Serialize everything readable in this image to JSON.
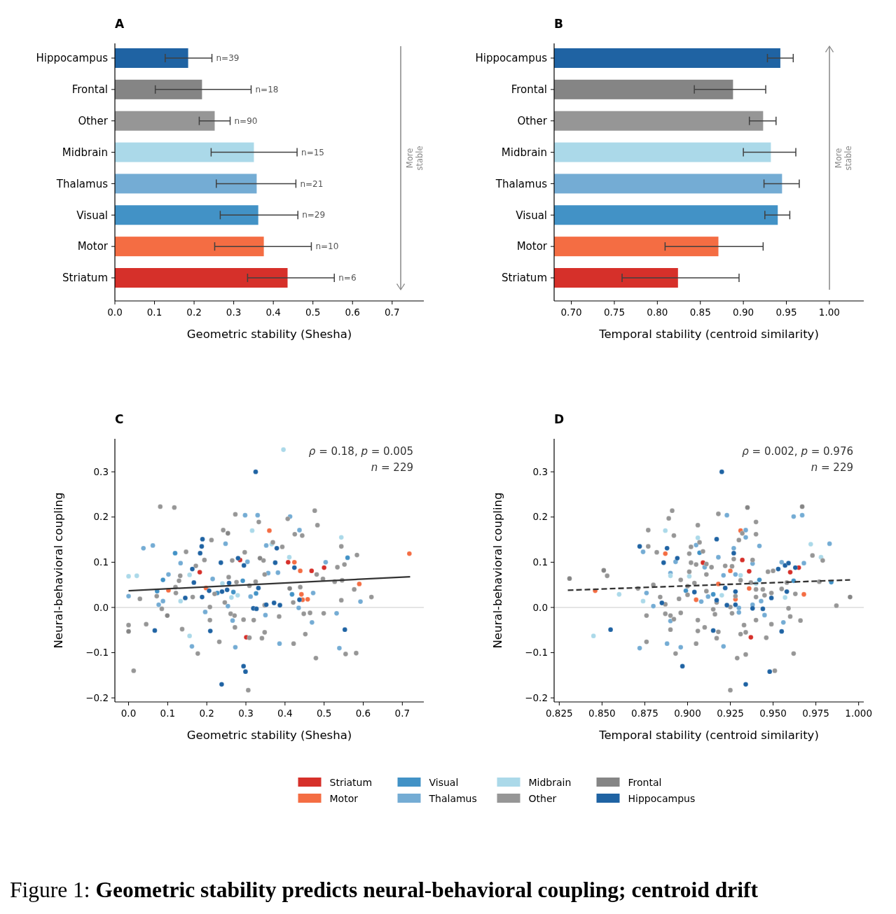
{
  "chart_data": [
    {
      "type": "bar",
      "orientation": "horizontal",
      "title": "A",
      "xlabel": "Geometric stability (Shesha)",
      "categories": [
        "Hippocampus",
        "Frontal",
        "Other",
        "Midbrain",
        "Thalamus",
        "Visual",
        "Motor",
        "Striatum"
      ],
      "values": [
        0.185,
        0.22,
        0.252,
        0.351,
        0.358,
        0.362,
        0.376,
        0.436
      ],
      "colors": [
        "#1f63a3",
        "#858585",
        "#969696",
        "#abd9e9",
        "#74acd4",
        "#4292c6",
        "#f46d43",
        "#d6302a"
      ],
      "errors": [
        [
          0.127,
          0.245
        ],
        [
          0.102,
          0.344
        ],
        [
          0.213,
          0.291
        ],
        [
          0.243,
          0.46
        ],
        [
          0.256,
          0.457
        ],
        [
          0.266,
          0.462
        ],
        [
          0.252,
          0.496
        ],
        [
          0.335,
          0.554
        ]
      ],
      "xlim": [
        0,
        0.78
      ],
      "annotations": [
        "More stable",
        {
          "text": "n=39",
          "x": 0.245,
          "y": "Hippocampus"
        },
        {
          "text": "n=18",
          "x": 0.344,
          "y": "Frontal"
        },
        {
          "text": "n=90",
          "x": 0.291,
          "y": "Other"
        },
        {
          "text": "n=15",
          "x": 0.46,
          "y": "Midbrain"
        },
        {
          "text": "n=21",
          "x": 0.457,
          "y": "Thalamus"
        },
        {
          "text": "n=29",
          "x": 0.462,
          "y": "Visual"
        },
        {
          "text": "n=10",
          "x": 0.496,
          "y": "Motor"
        },
        {
          "text": "n=6",
          "x": 0.554,
          "y": "Striatum"
        }
      ],
      "xticks": [
        {
          "value": 0,
          "label": "0.0"
        },
        {
          "value": 0.1,
          "label": "0.1"
        },
        {
          "value": 0.2,
          "label": "0.2"
        },
        {
          "value": 0.3,
          "label": "0.3"
        },
        {
          "value": 0.4,
          "label": "0.4"
        },
        {
          "value": 0.5,
          "label": "0.5"
        },
        {
          "value": 0.6,
          "label": "0.6"
        },
        {
          "value": 0.7,
          "label": "0.7"
        }
      ]
    },
    {
      "type": "bar",
      "orientation": "horizontal",
      "title": "B",
      "xlabel": "Temporal stability (centroid similarity)",
      "categories": [
        "Hippocampus",
        "Frontal",
        "Other",
        "Midbrain",
        "Thalamus",
        "Visual",
        "Motor",
        "Striatum"
      ],
      "values": [
        0.943,
        0.888,
        0.923,
        0.932,
        0.945,
        0.94,
        0.871,
        0.824
      ],
      "colors": [
        "#1f63a3",
        "#858585",
        "#969696",
        "#abd9e9",
        "#74acd4",
        "#4292c6",
        "#f46d43",
        "#d6302a"
      ],
      "errors": [
        [
          0.928,
          0.958
        ],
        [
          0.843,
          0.926
        ],
        [
          0.907,
          0.938
        ],
        [
          0.9,
          0.961
        ],
        [
          0.924,
          0.965
        ],
        [
          0.925,
          0.954
        ],
        [
          0.809,
          0.923
        ],
        [
          0.759,
          0.895
        ]
      ],
      "xlim": [
        0.68,
        1.04
      ],
      "xticks": [
        {
          "value": 0.7,
          "label": "0.70"
        },
        {
          "value": 0.75,
          "label": "0.75"
        },
        {
          "value": 0.8,
          "label": "0.80"
        },
        {
          "value": 0.85,
          "label": "0.85"
        },
        {
          "value": 0.9,
          "label": "0.90"
        },
        {
          "value": 0.95,
          "label": "0.95"
        },
        {
          "value": 1,
          "label": "1.00"
        }
      ],
      "annotations": [
        "More stable"
      ]
    },
    {
      "type": "scatter",
      "title": "C",
      "xlabel": "Geometric stability (Shesha)",
      "ylabel": "Neural-behavioral coupling",
      "legend": "bottom",
      "xlim": [
        -0.035,
        0.755
      ],
      "ylim": [
        -0.209,
        0.373
      ],
      "xticks": [
        {
          "value": 0,
          "label": "0.0"
        },
        {
          "value": 0.1,
          "label": "0.1"
        },
        {
          "value": 0.2,
          "label": "0.2"
        },
        {
          "value": 0.3,
          "label": "0.3"
        },
        {
          "value": 0.4,
          "label": "0.4"
        },
        {
          "value": 0.5,
          "label": "0.5"
        },
        {
          "value": 0.6,
          "label": "0.6"
        },
        {
          "value": 0.7,
          "label": "0.7"
        }
      ],
      "yticks": [
        {
          "value": -0.2,
          "label": "−0.2"
        },
        {
          "value": -0.1,
          "label": "−0.1"
        },
        {
          "value": 0,
          "label": "0.0"
        },
        {
          "value": 0.1,
          "label": "0.1"
        },
        {
          "value": 0.2,
          "label": "0.2"
        },
        {
          "value": 0.3,
          "label": "0.3"
        }
      ],
      "ref_lines": [
        {
          "axis": "y",
          "value": 0,
          "color": "#cccccc"
        }
      ],
      "annotations": [
        "ρ = 0.18, p = 0.005",
        "n = 229"
      ],
      "series": [
        {
          "name": "Striatum",
          "color": "#d6302a",
          "x": [
            0.285,
            0.182,
            0.408,
            0.468,
            0.5,
            0.301
          ],
          "values": [
            0.105,
            0.078,
            0.1,
            0.081,
            0.088,
            -0.066
          ]
        },
        {
          "name": "Motor",
          "color": "#f46d43",
          "x": [
            0.36,
            0.102,
            0.424,
            0.439,
            0.442,
            0.458,
            0.445,
            0.59,
            0.718,
            0.198
          ],
          "values": [
            0.17,
            0.038,
            0.1,
            0.081,
            0.029,
            0.018,
            0.017,
            0.052,
            0.119,
            0.043
          ]
        },
        {
          "name": "Visual",
          "color": "#4292c6",
          "x": [
            0.119,
            0.088,
            0.292,
            0.326,
            0.418,
            0.073,
            0.56,
            0.227,
            0.268
          ],
          "values": [
            0.12,
            0.061,
            0.059,
            0.031,
            0.029,
            0.036,
            0.11,
            0.032,
            0.034
          ]
        },
        {
          "name": "Thalamus",
          "color": "#74acd4",
          "x": [
            0.038,
            0.062,
            0,
            0.133,
            0.102,
            0.088,
            0.077,
            0.196,
            0.162,
            0.248,
            0.298,
            0.33,
            0.352,
            0.382,
            0.357,
            0.273,
            0.266,
            0.254,
            0.35,
            0.386,
            0.413,
            0.437,
            0.504,
            0.472,
            0.469,
            0.532,
            0.539,
            0.593,
            0.312,
            0.435,
            0.215,
            0.304
          ],
          "values": [
            0.131,
            0.137,
            0.025,
            0.098,
            0.073,
            0.014,
            0.006,
            -0.01,
            -0.086,
            0.141,
            0.204,
            0.204,
            0.137,
            0.077,
            0.076,
            -0.088,
            -0.029,
            0.003,
            -0.017,
            -0.08,
            0.201,
            0.171,
            0.1,
            0.032,
            -0.033,
            -0.013,
            -0.09,
            0.013,
            0.024,
            -0.001,
            0.063,
            0.101
          ]
        },
        {
          "name": "Midbrain",
          "color": "#abd9e9",
          "x": [
            0.396,
            0,
            0.021,
            0.316,
            0.156,
            0.133,
            0.156,
            0.263,
            0.279,
            0.411,
            0.544,
            0.366,
            0.24
          ],
          "values": [
            0.349,
            0.069,
            0.07,
            0.17,
            0.072,
            0.014,
            -0.063,
            0.022,
            0.027,
            0.111,
            0.155,
            0.14,
            0.053
          ]
        },
        {
          "name": "Other",
          "color": "#969696",
          "x": [
            0.081,
            0.117,
            0.273,
            0.476,
            0.483,
            0.333,
            0.407,
            0.242,
            0.212,
            0.147,
            0.544,
            0.584,
            0.552,
            0.534,
            0.425,
            0.444,
            0.393,
            0.369,
            0.297,
            0.345,
            0.265,
            0.194,
            0.172,
            0.132,
            0.129,
            0.12,
            0.072,
            0.029,
            0.256,
            0.276,
            0.325,
            0.348,
            0.309,
            0.439,
            0.481,
            0.497,
            0.527,
            0.546,
            0.577,
            0.621,
            0.544,
            0.421,
            0.348,
            0.246,
            0.22,
            0.164,
            0.121,
            0.208,
            0.085,
            0.045,
            0,
            0.137,
            0.208,
            0.261,
            0.271,
            0.294,
            0.32,
            0.385,
            0.448,
            0.464,
            0.499,
            0.348,
            0.341,
            0.309,
            0.272,
            0.232,
            0.177,
            0.422,
            0.452,
            0.479,
            0.555,
            0.582,
            0.013,
            0.306
          ],
          "values": [
            0.223,
            0.221,
            0.206,
            0.214,
            0.182,
            0.189,
            0.196,
            0.171,
            0.149,
            0.123,
            0.135,
            0.116,
            0.095,
            0.089,
            0.162,
            0.159,
            0.134,
            0.144,
            0.122,
            0.104,
            0.104,
            0.105,
            0.092,
            0.07,
            0.059,
            0.045,
            0.025,
            0.019,
            0.067,
            0.056,
            0.057,
            0.073,
            0.048,
            0.045,
            0.073,
            0.063,
            0.057,
            0.06,
            0.04,
            0.023,
            0.016,
            0.011,
            0.005,
            0.011,
            0.03,
            0.023,
            0.032,
            0.001,
            -0.003,
            -0.037,
            -0.039,
            -0.048,
            -0.028,
            -0.014,
            -0.018,
            -0.027,
            -0.028,
            -0.02,
            -0.014,
            -0.012,
            -0.013,
            -0.055,
            -0.068,
            -0.067,
            -0.044,
            -0.076,
            -0.102,
            -0.08,
            -0.059,
            -0.112,
            -0.103,
            -0.101,
            -0.14,
            -0.183
          ]
        },
        {
          "name": "Frontal",
          "color": "#858585",
          "x": [
            0,
            0.099,
            0.336,
            0.412,
            0.254
          ],
          "values": [
            -0.053,
            -0.018,
            0.109,
            0.042,
            0.164
          ]
        },
        {
          "name": "Hippocampus",
          "color": "#1f63a3",
          "x": [
            0.325,
            0.238,
            0.294,
            0.299,
            0.067,
            0.209,
            0.553,
            0.189,
            0.187,
            0.183,
            0.163,
            0.167,
            0.145,
            0.188,
            0.206,
            0.236,
            0.28,
            0.295,
            0.257,
            0.252,
            0.332,
            0.319,
            0.327,
            0.352,
            0.372,
            0.387,
            0.379,
            0.375,
            0.424,
            0.437,
            0.239
          ],
          "values": [
            0.3,
            -0.17,
            -0.13,
            -0.142,
            -0.051,
            -0.052,
            -0.049,
            0.151,
            0.135,
            0.12,
            0.085,
            0.055,
            0.021,
            0.023,
            0.037,
            0.099,
            0.109,
            0.093,
            0.054,
            0.039,
            0.043,
            -0.002,
            -0.003,
            0.006,
            0.01,
            0.005,
            0.131,
            0.099,
            0.088,
            0.017,
            0.035
          ]
        },
        {
          "type": "line",
          "color": "#333333",
          "x": [
            0,
            0.72
          ],
          "values": [
            0.037,
            0.068
          ]
        }
      ]
    },
    {
      "type": "scatter",
      "title": "D",
      "xlabel": "Temporal stability (centroid similarity)",
      "ylabel": "Neural-behavioral coupling",
      "legend": "bottom",
      "xlim": [
        0.822,
        1.003
      ],
      "ylim": [
        -0.209,
        0.373
      ],
      "xticks": [
        {
          "value": 0.825,
          "label": "0.825"
        },
        {
          "value": 0.85,
          "label": "0.850"
        },
        {
          "value": 0.875,
          "label": "0.875"
        },
        {
          "value": 0.9,
          "label": "0.900"
        },
        {
          "value": 0.925,
          "label": "0.925"
        },
        {
          "value": 0.95,
          "label": "0.950"
        },
        {
          "value": 0.975,
          "label": "0.975"
        },
        {
          "value": 1,
          "label": "1.000"
        }
      ],
      "yticks": [
        {
          "value": -0.2,
          "label": "−0.2"
        },
        {
          "value": -0.1,
          "label": "−0.1"
        },
        {
          "value": 0,
          "label": "0.0"
        },
        {
          "value": 0.1,
          "label": "0.1"
        },
        {
          "value": 0.2,
          "label": "0.2"
        },
        {
          "value": 0.3,
          "label": "0.3"
        }
      ],
      "ref_lines": [
        {
          "axis": "y",
          "value": 0,
          "color": "#cccccc"
        }
      ],
      "annotations": [
        "ρ = 0.002, p = 0.976",
        "n = 229"
      ],
      "series": [
        {
          "name": "Striatum",
          "color": "#d6302a",
          "x": [
            0.909,
            0.932,
            0.936,
            0.96,
            0.965,
            0.937
          ],
          "values": [
            0.099,
            0.105,
            0.08,
            0.078,
            0.088,
            -0.066
          ]
        },
        {
          "name": "Motor",
          "color": "#f46d43",
          "x": [
            0.846,
            0.887,
            0.931,
            0.925,
            0.918,
            0.905,
            0.928,
            0.936,
            0.968
          ],
          "values": [
            0.037,
            0.119,
            0.17,
            0.081,
            0.052,
            0.017,
            0.018,
            0.042,
            0.029
          ]
        },
        {
          "name": "Visual",
          "color": "#4292c6",
          "x": [
            0.899,
            0.907,
            0.942,
            0.962,
            0.984,
            0.915
          ],
          "values": [
            0.037,
            0.121,
            0.061,
            0.059,
            0.056,
            0.029
          ]
        },
        {
          "name": "Thalamus",
          "color": "#74acd4",
          "x": [
            0.874,
            0.872,
            0.876,
            0.88,
            0.888,
            0.89,
            0.89,
            0.893,
            0.896,
            0.905,
            0.91,
            0.912,
            0.908,
            0.918,
            0.921,
            0.923,
            0.927,
            0.928,
            0.921,
            0.934,
            0.934,
            0.938,
            0.942,
            0.943,
            0.945,
            0.93,
            0.93,
            0.938,
            0.956,
            0.955,
            0.962,
            0.967,
            0.968,
            0.983
          ],
          "values": [
            0.123,
            -0.09,
            0.032,
            0.003,
            -0.08,
            -0.03,
            0.076,
            0.101,
            -0.088,
            0.138,
            0.089,
            0.024,
            0.013,
            0.111,
            0.071,
            0.204,
            0.131,
            0.073,
            -0.086,
            0.171,
            0.155,
            0.097,
            0.136,
            0.014,
            -0.017,
            -0.011,
            -0.001,
            0.006,
            -0.033,
            0.1,
            0.201,
            0.204,
            0.098,
            0.141
          ]
        },
        {
          "name": "Midbrain",
          "color": "#abd9e9",
          "x": [
            0.845,
            0.86,
            0.874,
            0.887,
            0.906,
            0.901,
            0.89,
            0.92,
            0.931,
            0.957,
            0.972,
            0.978,
            0.94
          ],
          "values": [
            -0.063,
            0.029,
            0.014,
            0.17,
            0.154,
            0.069,
            0.07,
            0.027,
            0.071,
            0.022,
            0.14,
            0.111,
            0.053
          ]
        },
        {
          "name": "Other",
          "color": "#969696",
          "x": [
            0.853,
            0.877,
            0.889,
            0.891,
            0.892,
            0.877,
            0.882,
            0.871,
            0.88,
            0.884,
            0.887,
            0.895,
            0.896,
            0.887,
            0.89,
            0.892,
            0.876,
            0.876,
            0.89,
            0.893,
            0.906,
            0.907,
            0.902,
            0.901,
            0.902,
            0.905,
            0.909,
            0.911,
            0.914,
            0.911,
            0.918,
            0.922,
            0.927,
            0.926,
            0.93,
            0.932,
            0.938,
            0.94,
            0.94,
            0.931,
            0.937,
            0.94,
            0.944,
            0.945,
            0.94,
            0.949,
            0.947,
            0.95,
            0.955,
            0.958,
            0.963,
            0.973,
            0.979,
            0.977,
            0.987,
            0.959,
            0.96,
            0.966,
            0.949,
            0.946,
            0.94,
            0.934,
            0.931,
            0.933,
            0.934,
            0.929,
            0.951,
            0.962,
            0.925,
            0.918,
            0.917,
            0.906,
            0.91,
            0.906,
            0.905,
            0.926,
            0.916,
            0.915,
            0.928,
            0.925,
            0.917,
            0.911,
            0.9,
            0.904,
            0.9,
            0.896,
            0.901
          ],
          "values": [
            0.07,
            0.171,
            0.197,
            0.214,
            0.159,
            0.135,
            0.122,
            0.042,
            0.05,
            0.023,
            0.007,
            0.019,
            -0.012,
            -0.014,
            -0.018,
            -0.026,
            -0.018,
            -0.076,
            -0.049,
            -0.102,
            0.182,
            0.144,
            0.134,
            0.119,
            0.099,
            0.095,
            0.124,
            0.096,
            0.089,
            0.073,
            0.207,
            0.092,
            0.107,
            0.091,
            0.149,
            0.164,
            0.105,
            0.189,
            0.162,
            0.06,
            0.055,
            0.04,
            0.04,
            0.027,
            0.023,
            0.032,
            0.079,
            0.081,
            0.041,
            0.055,
            0.03,
            0.115,
            0.104,
            0.057,
            0.004,
            -0.002,
            -0.02,
            -0.029,
            -0.037,
            -0.067,
            -0.028,
            -0.055,
            -0.059,
            -0.039,
            -0.104,
            -0.112,
            -0.14,
            -0.102,
            -0.183,
            -0.054,
            -0.068,
            -0.052,
            -0.044,
            -0.028,
            -0.08,
            -0.013,
            -0.015,
            -0.004,
            0.025,
            0.001,
            0.011,
            0.036,
            0.028,
            0.054,
            0.047,
            0.061,
            0.079
          ]
        },
        {
          "name": "Frontal",
          "color": "#858585",
          "x": [
            0.831,
            0.851,
            0.967,
            0.935,
            0.995
          ],
          "values": [
            0.064,
            0.082,
            0.223,
            0.221,
            0.023
          ]
        },
        {
          "name": "Hippocampus",
          "color": "#1f63a3",
          "x": [
            0.92,
            0.934,
            0.948,
            0.897,
            0.855,
            0.955,
            0.915,
            0.872,
            0.888,
            0.886,
            0.894,
            0.885,
            0.904,
            0.917,
            0.917,
            0.922,
            0.927,
            0.928,
            0.928,
            0.923,
            0.938,
            0.944,
            0.949,
            0.953,
            0.957,
            0.959,
            0.963,
            0.958
          ],
          "values": [
            0.3,
            -0.17,
            -0.142,
            -0.13,
            -0.049,
            -0.053,
            -0.051,
            0.135,
            0.131,
            0.099,
            0.109,
            0.01,
            0.034,
            0.151,
            0.016,
            0.043,
            0.12,
            0.035,
            0.006,
            0.005,
            -0.002,
            -0.003,
            0.021,
            0.085,
            0.093,
            0.098,
            0.088,
            0.035
          ]
        },
        {
          "type": "line",
          "color": "#333333",
          "line_style": "dashed",
          "x": [
            0.83,
            0.995
          ],
          "values": [
            0.038,
            0.061
          ]
        }
      ]
    },
    {
      "type": "other",
      "annotations": [
        "Figure 1:",
        "Geometric stability predicts neural-behavioral coupling; centroid drift"
      ]
    }
  ]
}
